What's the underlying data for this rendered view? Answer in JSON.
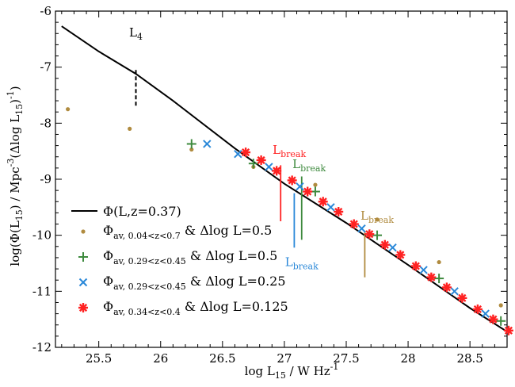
{
  "chart_data": {
    "type": "scatter",
    "xlim": [
      25.15,
      28.8
    ],
    "ylim": [
      -12,
      -6
    ],
    "xticks": [
      25.5,
      26,
      26.5,
      27,
      27.5,
      28,
      28.5
    ],
    "yticks": [
      -12,
      -11,
      -10,
      -9,
      -8,
      -7,
      -6
    ],
    "xtick_labels": [
      "25.5",
      "26",
      "26.5",
      "27",
      "27.5",
      "28",
      "28.5"
    ],
    "ytick_labels": [
      "-12",
      "-11",
      "-10",
      "-9",
      "-8",
      "-7",
      "-6"
    ],
    "xlabel": {
      "pre": "log L",
      "sub": "15",
      "post": " / W Hz",
      "sup": "-1"
    },
    "ylabel": {
      "a": "log(Φ(L",
      "b": "15",
      "c": ") / Mpc",
      "d": "-3",
      "e": "(Δlog L",
      "f": "15",
      "g": ")",
      "h": "-1",
      "i": ")"
    },
    "colors": {
      "model": "#000000",
      "tan": "#b08b3f",
      "green": "#3e8a3e",
      "blue": "#2a88d8",
      "red": "#ff2222"
    },
    "model_line": {
      "label": "Φ(L,z=0.37)",
      "x": [
        25.2,
        25.5,
        25.8,
        26.1,
        26.6,
        27.0,
        27.5,
        28.0,
        28.5,
        28.8
      ],
      "y": [
        -6.27,
        -6.72,
        -7.12,
        -7.6,
        -8.45,
        -9.08,
        -9.78,
        -10.53,
        -11.3,
        -11.72
      ]
    },
    "series": [
      {
        "name_main": "Φ",
        "name_sub": "av, 0.04<z<0.7",
        "name_rest": " & Δlog L=0.5",
        "marker": "dot",
        "color": "#b08b3f",
        "x": [
          25.25,
          25.75,
          26.25,
          26.75,
          27.25,
          27.75,
          28.25,
          28.75
        ],
        "y": [
          -7.75,
          -8.1,
          -8.47,
          -8.78,
          -9.1,
          -9.72,
          -10.48,
          -11.25
        ]
      },
      {
        "name_main": "Φ",
        "name_sub": "av, 0.29<z<0.45",
        "name_rest": " & Δlog L=0.5",
        "marker": "plus",
        "color": "#3e8a3e",
        "x": [
          26.25,
          26.75,
          27.25,
          27.75,
          28.25,
          28.75
        ],
        "y": [
          -8.37,
          -8.72,
          -9.22,
          -10.0,
          -10.77,
          -11.53
        ]
      },
      {
        "name_main": "Φ",
        "name_sub": "av, 0.29<z<0.45",
        "name_rest": " & Δlog L=0.25",
        "marker": "cross",
        "color": "#2a88d8",
        "x": [
          26.375,
          26.625,
          26.875,
          27.125,
          27.375,
          27.625,
          27.875,
          28.125,
          28.375,
          28.625
        ],
        "y": [
          -8.37,
          -8.55,
          -8.78,
          -9.13,
          -9.5,
          -9.88,
          -10.22,
          -10.62,
          -11.0,
          -11.4
        ]
      },
      {
        "name_main": "Φ",
        "name_sub": "av, 0.34<z<0.4",
        "name_rest": " & Δlog L=0.125",
        "marker": "star",
        "color": "#ff2222",
        "x": [
          26.6875,
          26.8125,
          26.9375,
          27.0625,
          27.1875,
          27.3125,
          27.4375,
          27.5625,
          27.6875,
          27.8125,
          27.9375,
          28.0625,
          28.1875,
          28.3125,
          28.4375,
          28.5625,
          28.6875,
          28.8125
        ],
        "y": [
          -8.52,
          -8.66,
          -8.85,
          -9.02,
          -9.22,
          -9.4,
          -9.58,
          -9.8,
          -9.98,
          -10.17,
          -10.35,
          -10.55,
          -10.75,
          -10.93,
          -11.12,
          -11.32,
          -11.5,
          -11.7
        ]
      }
    ],
    "annotations": [
      {
        "id": "L4",
        "main": "L",
        "sub": "4",
        "color": "#000000",
        "x": 25.8,
        "y0": -7.05,
        "y1": -7.7,
        "dashed": true,
        "label_x": 25.8,
        "label_y": -6.45,
        "label_anchor": "middle"
      },
      {
        "id": "Lbreak-red",
        "main": "L",
        "sub": "break",
        "color": "#ff2222",
        "x": 26.97,
        "y0": -8.75,
        "y1": -9.75,
        "dashed": false,
        "label_x": 27.04,
        "label_y": -8.55,
        "label_anchor": "middle"
      },
      {
        "id": "Lbreak-blue",
        "main": "L",
        "sub": "break",
        "color": "#2a88d8",
        "x": 27.08,
        "y0": -9.25,
        "y1": -10.22,
        "dashed": false,
        "label_x": 27.14,
        "label_y": -10.55,
        "label_anchor": "middle"
      },
      {
        "id": "Lbreak-green",
        "main": "L",
        "sub": "break",
        "color": "#3e8a3e",
        "x": 27.14,
        "y0": -8.95,
        "y1": -10.08,
        "dashed": false,
        "label_x": 27.2,
        "label_y": -8.8,
        "label_anchor": "middle"
      },
      {
        "id": "Lbreak-tan",
        "main": "L",
        "sub": "break",
        "color": "#b08b3f",
        "x": 27.65,
        "y0": -9.92,
        "y1": -10.75,
        "dashed": false,
        "label_x": 27.75,
        "label_y": -9.72,
        "label_anchor": "middle"
      }
    ],
    "legend": {
      "position": "bottom-left"
    },
    "grid": false
  }
}
